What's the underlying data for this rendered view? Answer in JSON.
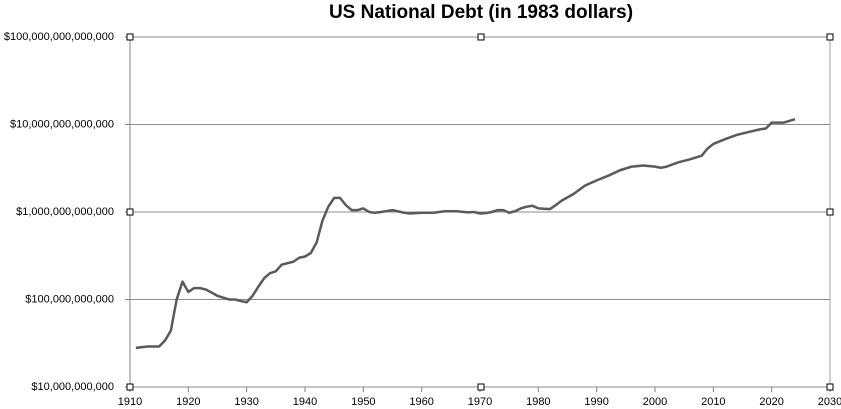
{
  "chart_data": {
    "type": "line",
    "title": "US National Debt (in 1983 dollars)",
    "x": [
      1911,
      1913,
      1914,
      1915,
      1916,
      1917,
      1918,
      1919,
      1920,
      1921,
      1922,
      1923,
      1924,
      1925,
      1926,
      1927,
      1928,
      1929,
      1930,
      1931,
      1932,
      1933,
      1934,
      1935,
      1936,
      1937,
      1938,
      1939,
      1940,
      1941,
      1942,
      1943,
      1944,
      1945,
      1946,
      1947,
      1948,
      1949,
      1950,
      1951,
      1952,
      1953,
      1955,
      1957,
      1958,
      1960,
      1962,
      1964,
      1966,
      1968,
      1969,
      1970,
      1971,
      1972,
      1973,
      1974,
      1975,
      1976,
      1977,
      1978,
      1979,
      1980,
      1982,
      1983,
      1984,
      1986,
      1988,
      1990,
      1992,
      1994,
      1996,
      1998,
      2000,
      2001,
      2002,
      2004,
      2006,
      2008,
      2009,
      2010,
      2012,
      2014,
      2016,
      2018,
      2019,
      2020,
      2022,
      2024
    ],
    "series": [
      {
        "name": "US National Debt",
        "color": "#5a5a5a",
        "values": [
          28000000000,
          29000000000,
          29000000000,
          29000000000,
          34000000000,
          44000000000,
          100000000000,
          160000000000,
          122000000000,
          135000000000,
          135000000000,
          130000000000,
          120000000000,
          110000000000,
          105000000000,
          100000000000,
          100000000000,
          96000000000,
          93000000000,
          110000000000,
          140000000000,
          175000000000,
          200000000000,
          210000000000,
          250000000000,
          260000000000,
          270000000000,
          300000000000,
          310000000000,
          340000000000,
          450000000000,
          800000000000,
          1150000000000,
          1450000000000,
          1450000000000,
          1200000000000,
          1050000000000,
          1050000000000,
          1100000000000,
          1000000000000,
          980000000000,
          1000000000000,
          1050000000000,
          980000000000,
          960000000000,
          980000000000,
          980000000000,
          1020000000000,
          1020000000000,
          990000000000,
          1000000000000,
          960000000000,
          970000000000,
          1000000000000,
          1050000000000,
          1050000000000,
          980000000000,
          1020000000000,
          1100000000000,
          1150000000000,
          1180000000000,
          1100000000000,
          1080000000000,
          1200000000000,
          1350000000000,
          1600000000000,
          2000000000000,
          2300000000000,
          2600000000000,
          3000000000000,
          3300000000000,
          3400000000000,
          3300000000000,
          3200000000000,
          3300000000000,
          3700000000000,
          4000000000000,
          4400000000000,
          5300000000000,
          6000000000000,
          6800000000000,
          7600000000000,
          8200000000000,
          8800000000000,
          9000000000000,
          10500000000000,
          10500000000000,
          11500000000000
        ]
      }
    ],
    "xlim": [
      1910,
      2030
    ],
    "xticks": [
      1910,
      1920,
      1930,
      1940,
      1950,
      1960,
      1970,
      1980,
      1990,
      2000,
      2010,
      2020,
      2030
    ],
    "ylim": [
      10000000000,
      100000000000000
    ],
    "log_y": true,
    "grid": true,
    "yticks": [
      {
        "value": 10000000000,
        "label": "$10,000,000,000"
      },
      {
        "value": 100000000000,
        "label": "$100,000,000,000"
      },
      {
        "value": 1000000000000,
        "label": "$1,000,000,000,000"
      },
      {
        "value": 10000000000000,
        "label": "$10,000,000,000,000"
      },
      {
        "value": 100000000000000,
        "label": "$100,000,000,000,000"
      }
    ]
  }
}
